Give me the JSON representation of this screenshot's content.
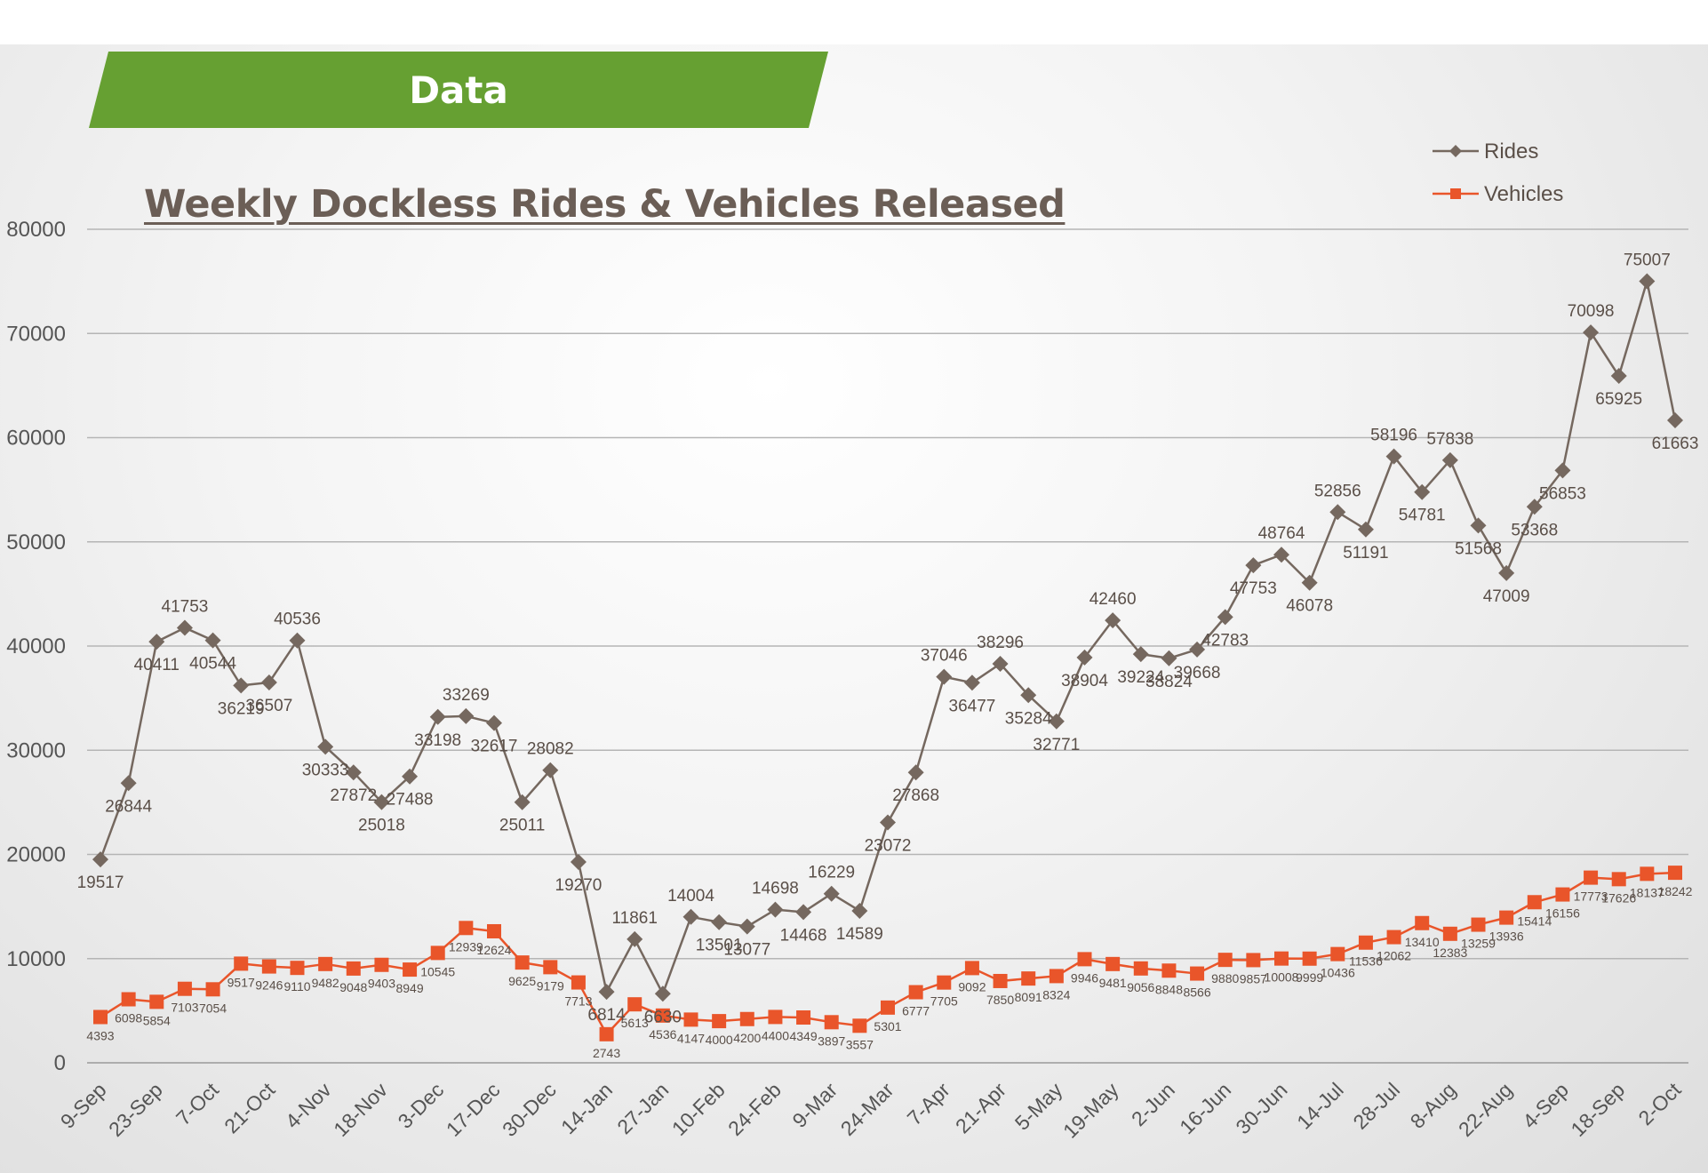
{
  "banner": {
    "label": "Data"
  },
  "colors": {
    "rides": "#75685f",
    "vehicles": "#e9552a",
    "banner": "#66a032"
  },
  "chart_data": {
    "type": "line",
    "title": "Weekly Dockless Rides & Vehicles Released",
    "xlabel": "",
    "ylabel": "",
    "ylim": [
      0,
      80000
    ],
    "yticks": [
      0,
      10000,
      20000,
      30000,
      40000,
      50000,
      60000,
      70000,
      80000
    ],
    "grid": true,
    "legend": "top-right",
    "x_tick_labels": [
      "9-Sep",
      "23-Sep",
      "7-Oct",
      "21-Oct",
      "4-Nov",
      "18-Nov",
      "3-Dec",
      "17-Dec",
      "30-Dec",
      "14-Jan",
      "27-Jan",
      "10-Feb",
      "24-Feb",
      "9-Mar",
      "24-Mar",
      "7-Apr",
      "21-Apr",
      "5-May",
      "19-May",
      "2-Jun",
      "16-Jun",
      "30-Jun",
      "14-Jul",
      "28-Jul",
      "8-Aug",
      "22-Aug",
      "4-Sep",
      "18-Sep",
      "2-Oct"
    ],
    "series": [
      {
        "name": "Rides",
        "values": [
          19517,
          26844,
          40411,
          41753,
          40544,
          36219,
          36507,
          40536,
          30333,
          27872,
          25018,
          27488,
          33198,
          33269,
          32617,
          25011,
          28082,
          19270,
          6814,
          11861,
          6630,
          14004,
          13501,
          13077,
          14698,
          14468,
          16229,
          14589,
          23072,
          27868,
          37046,
          36477,
          38296,
          35284,
          32771,
          38904,
          42460,
          39224,
          38824,
          39668,
          42783,
          47753,
          48764,
          46078,
          52856,
          51191,
          58196,
          54781,
          57838,
          51568,
          47009,
          53368,
          56853,
          70098,
          65925,
          75007,
          61663
        ]
      },
      {
        "name": "Vehicles",
        "values": [
          4393,
          6098,
          5854,
          7103,
          7054,
          9517,
          9246,
          9110,
          9482,
          9048,
          9403,
          8949,
          10545,
          12939,
          12624,
          9625,
          9179,
          7713,
          2743,
          5613,
          4536,
          4147,
          4000,
          4200,
          4400,
          4349,
          3897,
          3557,
          5301,
          6777,
          7705,
          9092,
          7850,
          8091,
          8324,
          9946,
          9481,
          9056,
          8848,
          8566,
          9880,
          9857,
          10008,
          9999,
          10436,
          11536,
          12062,
          13410,
          12383,
          13259,
          13936,
          15414,
          16156,
          17773,
          17626,
          18137,
          18242
        ]
      }
    ]
  }
}
